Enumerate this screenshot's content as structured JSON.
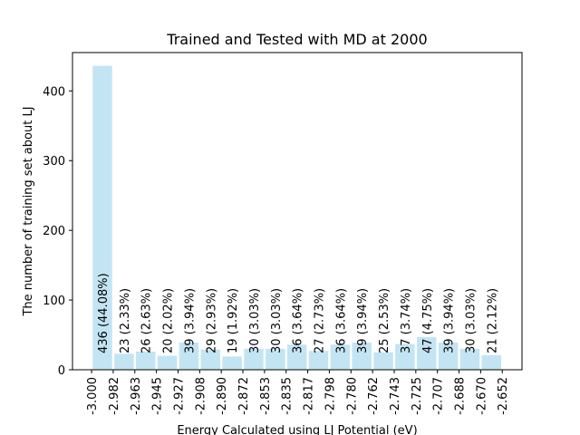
{
  "chart_data": {
    "type": "bar",
    "title": "Trained and Tested with MD at 2000",
    "xlabel": "Energy Calculated using LJ Potential (eV)",
    "ylabel": "The number of training set about LJ",
    "ylim": [
      0,
      455
    ],
    "yticks": [
      "0",
      "100",
      "200",
      "300",
      "400"
    ],
    "xticks": [
      "-3.000",
      "-2.982",
      "-2.963",
      "-2.945",
      "-2.927",
      "-2.908",
      "-2.890",
      "-2.872",
      "-2.853",
      "-2.835",
      "-2.817",
      "-2.798",
      "-2.780",
      "-2.762",
      "-2.743",
      "-2.725",
      "-2.707",
      "-2.688",
      "-2.670",
      "-2.652"
    ],
    "values": [
      436,
      23,
      26,
      20,
      39,
      29,
      19,
      30,
      30,
      36,
      27,
      36,
      39,
      25,
      37,
      47,
      39,
      30,
      21
    ],
    "bar_labels": [
      "436  (44.08%)",
      "23  (2.33%)",
      "26  (2.63%)",
      "20  (2.02%)",
      "39  (3.94%)",
      "29  (2.93%)",
      "19  (1.92%)",
      "30  (3.03%)",
      "30  (3.03%)",
      "36  (3.64%)",
      "27  (2.73%)",
      "36  (3.64%)",
      "39  (3.94%)",
      "25  (2.53%)",
      "37  (3.74%)",
      "47  (4.75%)",
      "39  (3.94%)",
      "30  (3.03%)",
      "21  (2.12%)"
    ],
    "bar_color": "#c3e4f3",
    "grid": false
  }
}
